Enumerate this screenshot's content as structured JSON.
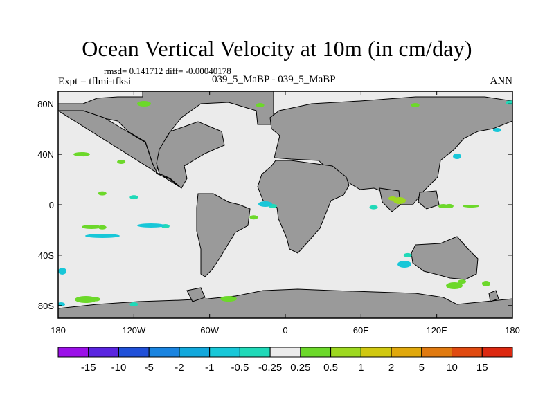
{
  "chart_data": {
    "type": "heatmap",
    "title": "Ocean Vertical Velocity at 10m (in cm/day)",
    "stats": "rmsd= 0.141712 diff= -0.00040178",
    "left_label": "Expt = tflmi-tfksi",
    "center_label": "039_5_MaBP - 039_5_MaBP",
    "right_label": "ANN",
    "projection": "cylindrical-equidistant",
    "lon_range": [
      -180,
      180
    ],
    "lat_range": [
      -90,
      90
    ],
    "x_ticks": [
      {
        "value": -180,
        "label": "180"
      },
      {
        "value": -120,
        "label": "120W"
      },
      {
        "value": -60,
        "label": "60W"
      },
      {
        "value": 0,
        "label": "0"
      },
      {
        "value": 60,
        "label": "60E"
      },
      {
        "value": 120,
        "label": "120E"
      },
      {
        "value": 180,
        "label": "180"
      }
    ],
    "y_ticks": [
      {
        "value": 80,
        "label": "80N"
      },
      {
        "value": 40,
        "label": "40N"
      },
      {
        "value": 0,
        "label": "0"
      },
      {
        "value": -40,
        "label": "40S"
      },
      {
        "value": -80,
        "label": "80S"
      }
    ],
    "colorbar": {
      "levels": [
        "-15",
        "-10",
        "-5",
        "-2",
        "-1",
        "-0.5",
        "-0.25",
        "0.25",
        "0.5",
        "1",
        "2",
        "5",
        "10",
        "15"
      ],
      "colors": [
        "#9b10e8",
        "#5a25e0",
        "#2050d8",
        "#1a84e0",
        "#12a8dc",
        "#18c7d8",
        "#20d9b8",
        "#ebebeb",
        "#6cd82a",
        "#9dd820",
        "#d0c810",
        "#e0a80c",
        "#e07a10",
        "#e04a10",
        "#dc2810"
      ]
    },
    "anomalies": [
      {
        "lon": -20,
        "lat": 79,
        "level": "0.25 to 0.5"
      },
      {
        "lon": 103,
        "lat": 79,
        "level": "0.25 to 0.5"
      },
      {
        "lon": 178,
        "lat": 81,
        "level": "-0.5 to -0.25"
      },
      {
        "lon": -130,
        "lat": 34,
        "level": "-0.25 to 0.25 edge"
      },
      {
        "lon": -160,
        "lat": 40,
        "level": "0.25 to 0.5"
      },
      {
        "lon": -145,
        "lat": 9,
        "level": "0.25 to 0.5"
      },
      {
        "lon": -120,
        "lat": 6,
        "level": "-0.5 to -0.25"
      },
      {
        "lon": -145,
        "lat": -18,
        "level": "0.25 to 0.5"
      },
      {
        "lon": -95,
        "lat": -17,
        "level": "-0.5 to -0.25"
      },
      {
        "lon": -10,
        "lat": -1,
        "level": "-0.5 to -0.25"
      },
      {
        "lon": -25,
        "lat": -10,
        "level": "0.25 to 0.5"
      },
      {
        "lon": 85,
        "lat": 5,
        "level": "1 to 2"
      },
      {
        "lon": 70,
        "lat": -2,
        "level": "-0.5 to -0.25"
      },
      {
        "lon": 130,
        "lat": -1,
        "level": "0.25 to 0.5"
      },
      {
        "lon": 97,
        "lat": -40,
        "level": "-0.5 to -0.25"
      },
      {
        "lon": 140,
        "lat": -61,
        "level": "0.25 to 0.5"
      },
      {
        "lon": -150,
        "lat": -75,
        "level": "0.25 to 0.5"
      },
      {
        "lon": -120,
        "lat": -79,
        "level": "-0.5 to -0.25"
      }
    ]
  }
}
